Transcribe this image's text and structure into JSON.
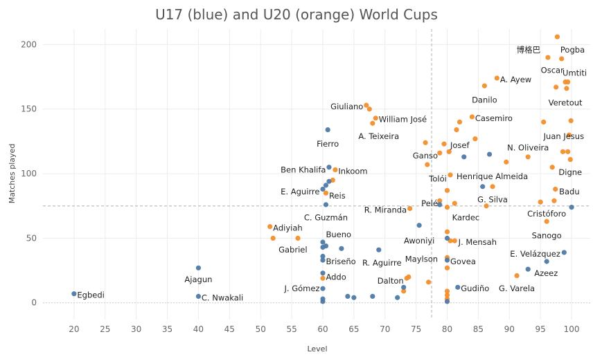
{
  "chart_data": {
    "type": "scatter",
    "title": "U17 (blue) and U20 (orange) World Cups",
    "xlabel": "Level",
    "ylabel": "Matches played",
    "xlim": [
      15,
      103
    ],
    "ylim": [
      -13,
      212
    ],
    "xticks": [
      "20",
      "25",
      "30",
      "35",
      "40",
      "45",
      "50",
      "55",
      "60",
      "65",
      "70",
      "75",
      "80",
      "85",
      "90",
      "95",
      "100"
    ],
    "yticks": [
      "0",
      "50",
      "100",
      "150",
      "200"
    ],
    "reference_lines": {
      "x": 77.5,
      "y": 75
    },
    "colors": {
      "U17": "#4e79a7",
      "U20": "#f28e2b"
    },
    "series": [
      {
        "name": "U17",
        "color": "#4e79a7",
        "points": [
          [
            20,
            7
          ],
          [
            40,
            27
          ],
          [
            40,
            5
          ],
          [
            60,
            11
          ],
          [
            60,
            1
          ],
          [
            60,
            3
          ],
          [
            60,
            23
          ],
          [
            60,
            33
          ],
          [
            60,
            36
          ],
          [
            60,
            43
          ],
          [
            60,
            47
          ],
          [
            60,
            88
          ],
          [
            60.5,
            44
          ],
          [
            60.5,
            91
          ],
          [
            60.5,
            76
          ],
          [
            60.8,
            134
          ],
          [
            61,
            105
          ],
          [
            61,
            94
          ],
          [
            63,
            42
          ],
          [
            64,
            5
          ],
          [
            65,
            4
          ],
          [
            68,
            5
          ],
          [
            69,
            41
          ],
          [
            72,
            4
          ],
          [
            73,
            12
          ],
          [
            75.5,
            60
          ],
          [
            78.8,
            76
          ],
          [
            80,
            1
          ],
          [
            80,
            33
          ],
          [
            80,
            50
          ],
          [
            81.7,
            12
          ],
          [
            82.7,
            113
          ],
          [
            85.7,
            90
          ],
          [
            86.8,
            115
          ],
          [
            93,
            26
          ],
          [
            96,
            32
          ],
          [
            98.8,
            39
          ],
          [
            100,
            74
          ]
        ]
      },
      {
        "name": "U20",
        "color": "#f28e2b",
        "points": [
          [
            51.5,
            59
          ],
          [
            52,
            50
          ],
          [
            56,
            50
          ],
          [
            60,
            19
          ],
          [
            60.5,
            85
          ],
          [
            61.6,
            95
          ],
          [
            62,
            103
          ],
          [
            67,
            153
          ],
          [
            67.5,
            150
          ],
          [
            68,
            139
          ],
          [
            68.5,
            143
          ],
          [
            73.8,
            20
          ],
          [
            73.5,
            19
          ],
          [
            73,
            9
          ],
          [
            74,
            73
          ],
          [
            77,
            16
          ],
          [
            76.5,
            124
          ],
          [
            76.8,
            107
          ],
          [
            78.8,
            79
          ],
          [
            78.8,
            116
          ],
          [
            79.5,
            123
          ],
          [
            80,
            3
          ],
          [
            80,
            6
          ],
          [
            80,
            9
          ],
          [
            80,
            27
          ],
          [
            80,
            35
          ],
          [
            80,
            55
          ],
          [
            80,
            87
          ],
          [
            80,
            74
          ],
          [
            80.3,
            117
          ],
          [
            80.5,
            48
          ],
          [
            80.5,
            99
          ],
          [
            81.2,
            48
          ],
          [
            81.2,
            77
          ],
          [
            81.5,
            134
          ],
          [
            82,
            140
          ],
          [
            84,
            144
          ],
          [
            84.5,
            127
          ],
          [
            86,
            168
          ],
          [
            86.3,
            75
          ],
          [
            87.3,
            90
          ],
          [
            88,
            174
          ],
          [
            89.5,
            109
          ],
          [
            91.2,
            21
          ],
          [
            93,
            113
          ],
          [
            95,
            78
          ],
          [
            95.5,
            140
          ],
          [
            96,
            63
          ],
          [
            96.2,
            190
          ],
          [
            96.9,
            105
          ],
          [
            97.2,
            79
          ],
          [
            97.4,
            88
          ],
          [
            97.5,
            167
          ],
          [
            97.7,
            206
          ],
          [
            98.4,
            189
          ],
          [
            98.6,
            117
          ],
          [
            99,
            171
          ],
          [
            99.2,
            166
          ],
          [
            99.4,
            171
          ],
          [
            99.4,
            117
          ],
          [
            99.6,
            130
          ],
          [
            99.8,
            111
          ],
          [
            99.9,
            141
          ]
        ]
      }
    ],
    "annotations": [
      {
        "text": "Egbedi",
        "x": 20.5,
        "y": 6,
        "anchor": "start"
      },
      {
        "text": "Ajagun",
        "x": 40,
        "y": 18,
        "anchor": "middle"
      },
      {
        "text": "C. Nwakali",
        "x": 40.5,
        "y": 4,
        "anchor": "start"
      },
      {
        "text": "J. Gómez",
        "x": 59.5,
        "y": 11,
        "anchor": "end"
      },
      {
        "text": "Addo",
        "x": 60.5,
        "y": 20,
        "anchor": "start"
      },
      {
        "text": "Briseño",
        "x": 60.5,
        "y": 32,
        "anchor": "start"
      },
      {
        "text": "Gabriel",
        "x": 57.5,
        "y": 41,
        "anchor": "end"
      },
      {
        "text": "Adiyiah",
        "x": 52,
        "y": 58,
        "anchor": "start"
      },
      {
        "text": "Bueno",
        "x": 60.5,
        "y": 53,
        "anchor": "start"
      },
      {
        "text": "C. Guzmán",
        "x": 60.5,
        "y": 66,
        "anchor": "middle"
      },
      {
        "text": "Reis",
        "x": 61,
        "y": 83,
        "anchor": "start"
      },
      {
        "text": "E. Aguirre",
        "x": 59.5,
        "y": 86,
        "anchor": "end"
      },
      {
        "text": "Ben Khalifa",
        "x": 60.5,
        "y": 103,
        "anchor": "end"
      },
      {
        "text": "Inkoom",
        "x": 62.5,
        "y": 102,
        "anchor": "start"
      },
      {
        "text": "Fierro",
        "x": 60.8,
        "y": 123,
        "anchor": "middle"
      },
      {
        "text": "Giuliano",
        "x": 66.5,
        "y": 152,
        "anchor": "end"
      },
      {
        "text": "William José",
        "x": 69,
        "y": 142,
        "anchor": "start"
      },
      {
        "text": "A. Teixeira",
        "x": 69,
        "y": 129,
        "anchor": "middle"
      },
      {
        "text": "R. Aguirre",
        "x": 69.5,
        "y": 31,
        "anchor": "middle"
      },
      {
        "text": "Dalton",
        "x": 73,
        "y": 17,
        "anchor": "end"
      },
      {
        "text": "R. Miranda",
        "x": 73.5,
        "y": 72,
        "anchor": "end"
      },
      {
        "text": "Pelé",
        "x": 78.5,
        "y": 77,
        "anchor": "end"
      },
      {
        "text": "Awoniyi",
        "x": 75.5,
        "y": 48,
        "anchor": "middle"
      },
      {
        "text": "Maylson",
        "x": 78.5,
        "y": 34,
        "anchor": "end"
      },
      {
        "text": "Ganso",
        "x": 78.5,
        "y": 114,
        "anchor": "end"
      },
      {
        "text": "Tolói",
        "x": 78.5,
        "y": 96,
        "anchor": "middle"
      },
      {
        "text": "Josef",
        "x": 80.5,
        "y": 122,
        "anchor": "start"
      },
      {
        "text": "Henrique Almeida",
        "x": 81.5,
        "y": 98,
        "anchor": "start"
      },
      {
        "text": "Kardec",
        "x": 83,
        "y": 66,
        "anchor": "middle"
      },
      {
        "text": "J. Mensah",
        "x": 81.8,
        "y": 47,
        "anchor": "start"
      },
      {
        "text": "Govea",
        "x": 80.5,
        "y": 32,
        "anchor": "start"
      },
      {
        "text": "Gudiño",
        "x": 82.2,
        "y": 11,
        "anchor": "start"
      },
      {
        "text": "Casemiro",
        "x": 84.5,
        "y": 143,
        "anchor": "start"
      },
      {
        "text": "Danilo",
        "x": 86,
        "y": 157,
        "anchor": "middle"
      },
      {
        "text": "A. Ayew",
        "x": 88.5,
        "y": 173,
        "anchor": "start"
      },
      {
        "text": "G. Silva",
        "x": 87.3,
        "y": 80,
        "anchor": "middle"
      },
      {
        "text": "G. Varela",
        "x": 91.2,
        "y": 11,
        "anchor": "middle"
      },
      {
        "text": "Azeez",
        "x": 94,
        "y": 23,
        "anchor": "start"
      },
      {
        "text": "N. Oliveira",
        "x": 93,
        "y": 120,
        "anchor": "middle"
      },
      {
        "text": "E. Velázquez",
        "x": 98.2,
        "y": 38,
        "anchor": "end"
      },
      {
        "text": "Sanogo",
        "x": 96,
        "y": 52,
        "anchor": "middle"
      },
      {
        "text": "Cristóforo",
        "x": 96,
        "y": 69,
        "anchor": "middle"
      },
      {
        "text": "Badu",
        "x": 98,
        "y": 86,
        "anchor": "start"
      },
      {
        "text": "Digne",
        "x": 99.8,
        "y": 101,
        "anchor": "middle"
      },
      {
        "text": "Juan Jesus",
        "x": 95.5,
        "y": 129,
        "anchor": "start"
      },
      {
        "text": "Veretout",
        "x": 99,
        "y": 155,
        "anchor": "middle"
      },
      {
        "text": "Umtiti",
        "x": 100.5,
        "y": 178,
        "anchor": "middle"
      },
      {
        "text": "Oscar",
        "x": 96.9,
        "y": 180,
        "anchor": "middle"
      },
      {
        "text": "Pogba",
        "x": 98.2,
        "y": 196,
        "anchor": "start"
      },
      {
        "text": "博格巴",
        "x": 95,
        "y": 196,
        "anchor": "end"
      }
    ]
  }
}
